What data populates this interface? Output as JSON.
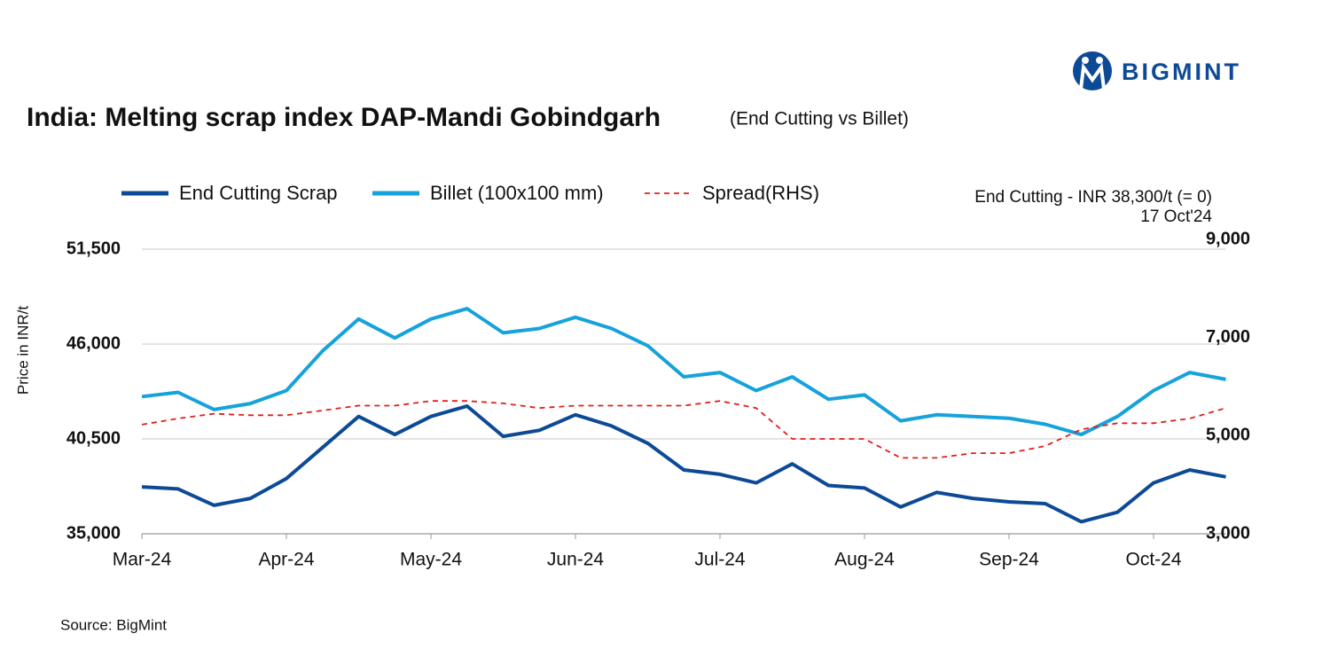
{
  "brand": "BIGMINT",
  "chart_data": {
    "type": "line",
    "title": "India: Melting scrap index DAP-Mandi Gobindgarh",
    "subtitle": "(End Cutting vs Billet)",
    "y_label": "Price in INR/t",
    "annotations": [
      "End Cutting - INR 38,300/t (= 0)",
      "17 Oct'24"
    ],
    "source": "Source: BigMint",
    "categories": [
      "Mar-24",
      null,
      null,
      null,
      "Apr-24",
      null,
      null,
      null,
      "May-24",
      null,
      null,
      null,
      "Jun-24",
      null,
      null,
      null,
      "Jul-24",
      null,
      null,
      null,
      "Aug-24",
      null,
      null,
      null,
      "Sep-24",
      null,
      null,
      null,
      "Oct-24",
      null,
      null
    ],
    "series": [
      {
        "name": "End Cutting Scrap",
        "color": "#0d4a96",
        "line_style": "solid",
        "values": [
          37720,
          37600,
          36650,
          37050,
          38200,
          40000,
          41800,
          40750,
          41800,
          42400,
          40650,
          41000,
          41900,
          41250,
          40250,
          38700,
          38450,
          37950,
          39050,
          37800,
          37650,
          36550,
          37400,
          37050,
          36850,
          36750,
          35700,
          36250,
          37950,
          38700,
          38300
        ]
      },
      {
        "name": "Billet (100x100 mm)",
        "color": "#17a2dc",
        "line_style": "solid",
        "values": [
          42950,
          43200,
          42200,
          42550,
          43300,
          45600,
          47450,
          46350,
          47450,
          48050,
          46650,
          46900,
          47550,
          46900,
          45900,
          44100,
          44350,
          43300,
          44100,
          42800,
          43050,
          41550,
          41900,
          41800,
          41700,
          41350,
          40750,
          41800,
          43300,
          44350,
          43950
        ]
      },
      {
        "name": "Spread(RHS)",
        "color": "#e0201b",
        "line_style": "dashed",
        "axis": "y2",
        "values": [
          5300,
          5430,
          5530,
          5500,
          5500,
          5600,
          5700,
          5700,
          5800,
          5800,
          5750,
          5650,
          5700,
          5700,
          5700,
          5700,
          5800,
          5650,
          5000,
          5000,
          5000,
          4600,
          4600,
          4700,
          4700,
          4850,
          5200,
          5330,
          5330,
          5430,
          5650
        ]
      }
    ],
    "ylim": [
      35000,
      51500
    ],
    "yticks": [
      {
        "value": 35000,
        "label": "35,000"
      },
      {
        "value": 40500,
        "label": "40,500"
      },
      {
        "value": 46000,
        "label": "46,000"
      },
      {
        "value": 51500,
        "label": "51,500"
      }
    ],
    "y2lim": [
      3000,
      9000
    ],
    "y2ticks": [
      {
        "value": 3000,
        "label": "3,000"
      },
      {
        "value": 5000,
        "label": "5,000"
      },
      {
        "value": 7000,
        "label": "7,000"
      },
      {
        "value": 9000,
        "label": "9,000"
      }
    ],
    "grid": true
  }
}
